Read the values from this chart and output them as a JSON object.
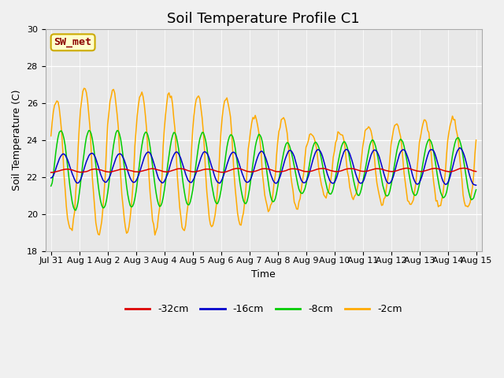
{
  "title": "Soil Temperature Profile C1",
  "xlabel": "Time",
  "ylabel": "Soil Temperature (C)",
  "ylim": [
    18,
    30
  ],
  "annotation": "SW_met",
  "fig_bg_color": "#f0f0f0",
  "plot_bg_color": "#e8e8e8",
  "legend_labels": [
    "-32cm",
    "-16cm",
    "-8cm",
    "-2cm"
  ],
  "legend_colors": [
    "#dd0000",
    "#0000cc",
    "#00cc00",
    "#ffaa00"
  ],
  "x_tick_labels": [
    "Jul 31",
    "Aug 1",
    "Aug 2",
    "Aug 3",
    "Aug 4",
    "Aug 5",
    "Aug 6",
    "Aug 7",
    "Aug 8",
    "Aug 9",
    "Aug 10",
    "Aug 11",
    "Aug 12",
    "Aug 13",
    "Aug 14",
    "Aug 15"
  ],
  "grid_color": "#ffffff",
  "title_fontsize": 13,
  "label_fontsize": 9,
  "tick_fontsize": 8
}
